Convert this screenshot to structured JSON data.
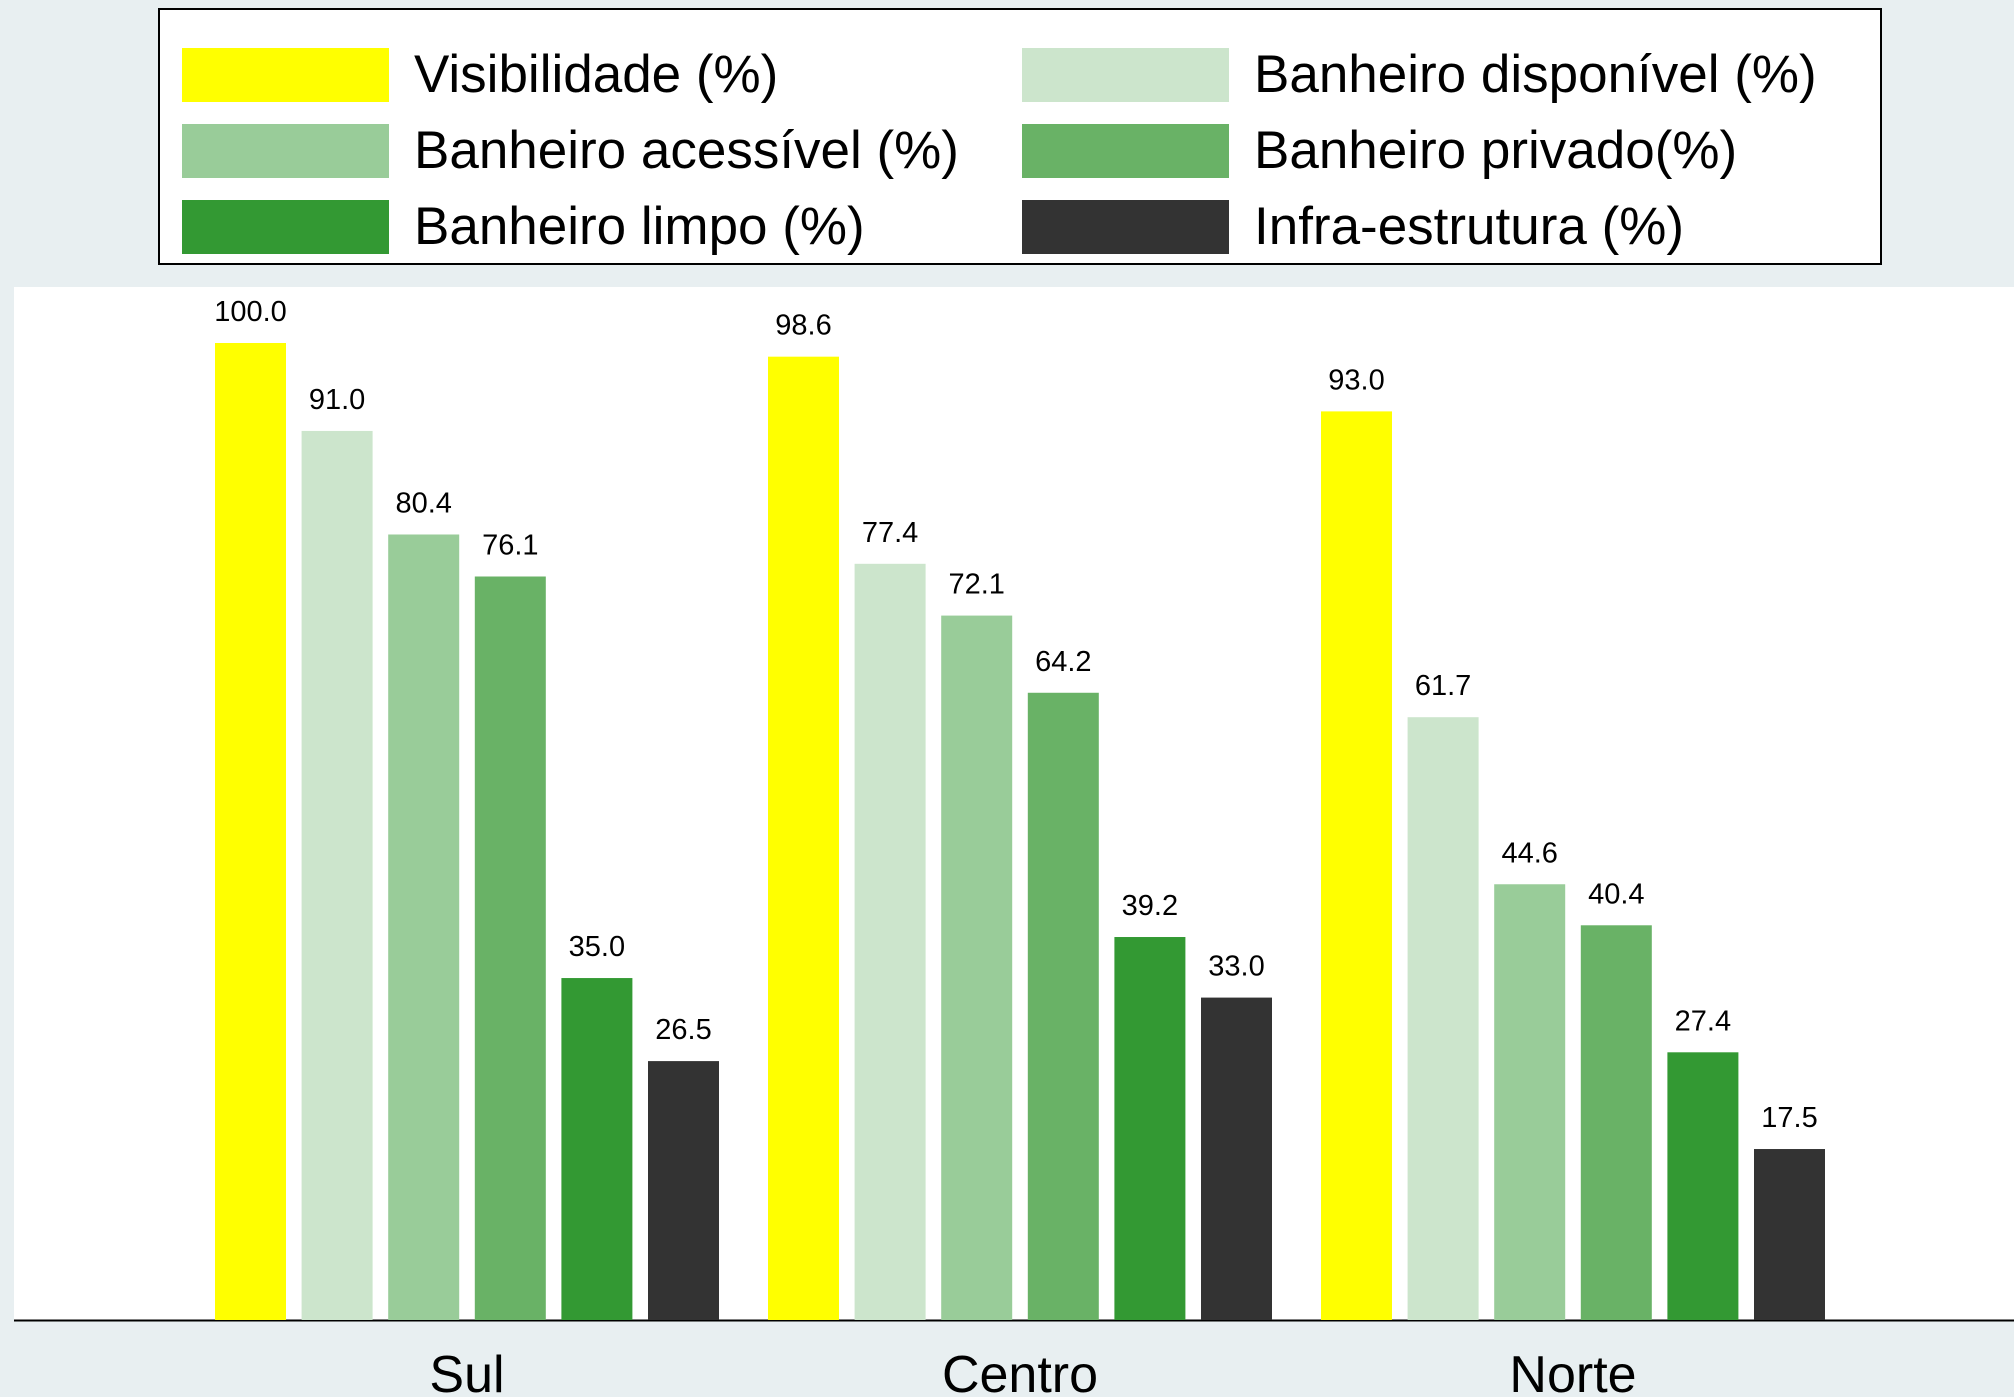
{
  "chart_data": {
    "type": "bar",
    "title": "",
    "xlabel": "",
    "ylabel": "",
    "ylim": [
      0,
      100
    ],
    "grid": false,
    "legend_position": "top",
    "categories": [
      "Sul",
      "Centro",
      "Norte"
    ],
    "series": [
      {
        "name": "Visibilidade (%)",
        "color": "#ffff00",
        "values": [
          100.0,
          98.6,
          93.0
        ],
        "labels": [
          "100.0",
          "98.6",
          "93.0"
        ]
      },
      {
        "name": "Banheiro disponível (%)",
        "color": "#cce5cc",
        "values": [
          91.0,
          77.4,
          61.7
        ],
        "labels": [
          "91.0",
          "77.4",
          "61.7"
        ]
      },
      {
        "name": "Banheiro acessível (%)",
        "color": "#99cc99",
        "values": [
          80.4,
          72.1,
          44.6
        ],
        "labels": [
          "80.4",
          "72.1",
          "44.6"
        ]
      },
      {
        "name": "Banheiro privado(%)",
        "color": "#69b266",
        "values": [
          76.1,
          64.2,
          40.4
        ],
        "labels": [
          "76.1",
          "64.2",
          "40.4"
        ]
      },
      {
        "name": "Banheiro limpo (%)",
        "color": "#339933",
        "values": [
          35.0,
          39.2,
          27.4
        ],
        "labels": [
          "35.0",
          "39.2",
          "27.4"
        ]
      },
      {
        "name": "Infra-estrutura (%)",
        "color": "#333333",
        "values": [
          26.5,
          33.0,
          17.5
        ],
        "labels": [
          "26.5",
          "33.0",
          "17.5"
        ]
      }
    ]
  }
}
